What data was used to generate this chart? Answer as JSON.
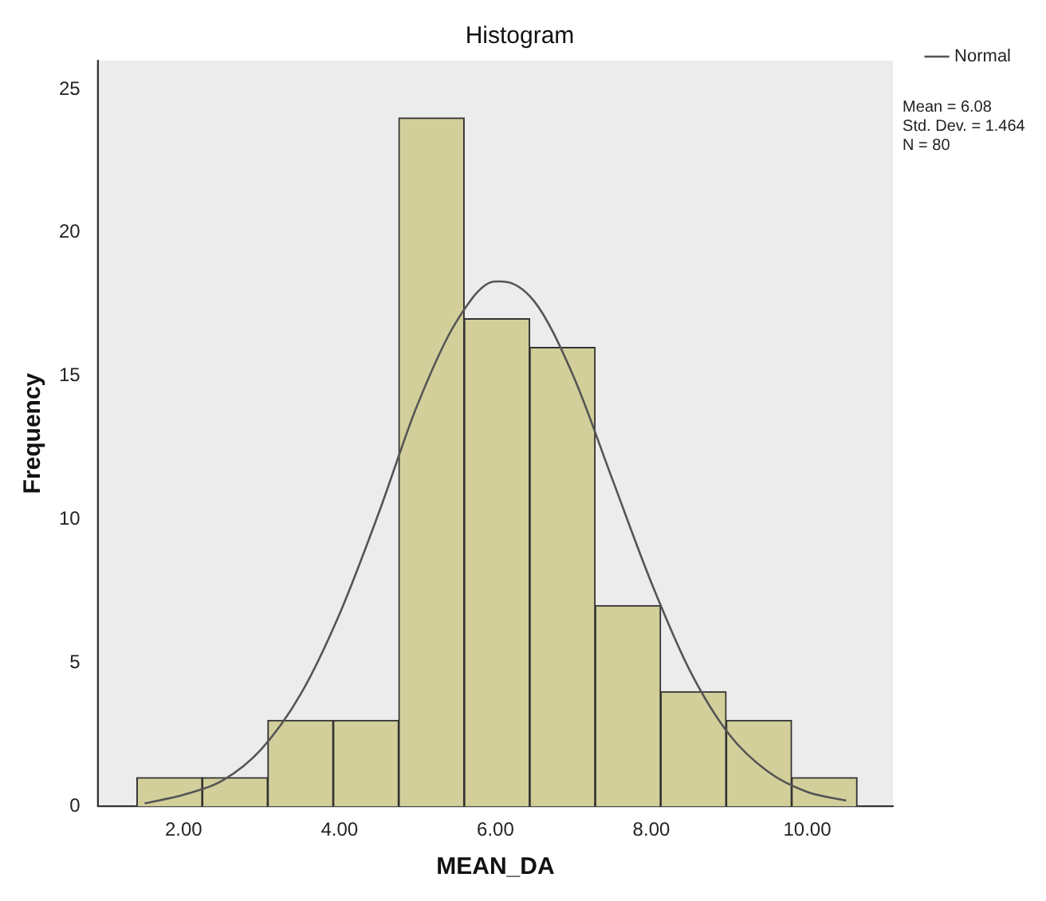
{
  "chart_data": {
    "type": "histogram",
    "title": "Histogram",
    "xlabel": "MEAN_DA",
    "ylabel": "Frequency",
    "bins": [
      1.4,
      2.24,
      3.08,
      3.92,
      4.76,
      5.6,
      6.44,
      7.28,
      8.12,
      8.96,
      9.8,
      10.64
    ],
    "values": [
      1,
      1,
      3,
      3,
      24,
      17,
      16,
      7,
      4,
      3,
      1
    ],
    "color": "#d3cf9b",
    "series": [
      {
        "name": "Normal",
        "type": "line",
        "color": "#555555",
        "x": [
          1.5,
          2,
          2.5,
          3,
          3.5,
          4,
          4.5,
          5,
          5.5,
          6,
          6.08,
          6.5,
          7,
          7.5,
          8,
          8.5,
          9,
          9.5,
          10,
          10.5
        ],
        "values": [
          0.1,
          0.4,
          0.9,
          2.0,
          3.9,
          6.7,
          10.2,
          14.0,
          16.9,
          18.3,
          18.3,
          17.6,
          15.0,
          11.4,
          7.8,
          4.7,
          2.5,
          1.2,
          0.5,
          0.2
        ]
      }
    ],
    "xlim": [
      0.9,
      11.1
    ],
    "xticks": [
      {
        "value": 2,
        "label": "2.00"
      },
      {
        "value": 4,
        "label": "4.00"
      },
      {
        "value": 6,
        "label": "6.00"
      },
      {
        "value": 8,
        "label": "8.00"
      },
      {
        "value": 10,
        "label": "10.00"
      }
    ],
    "ylim": [
      0,
      26
    ],
    "yticks": [
      0,
      5,
      10,
      15,
      20,
      25
    ],
    "grid": false,
    "legend": "top right",
    "marker": "none",
    "line_style": "solid",
    "annotations": [
      "Mean = 6.08",
      "Std. Dev. = 1.464",
      "N = 80"
    ]
  }
}
